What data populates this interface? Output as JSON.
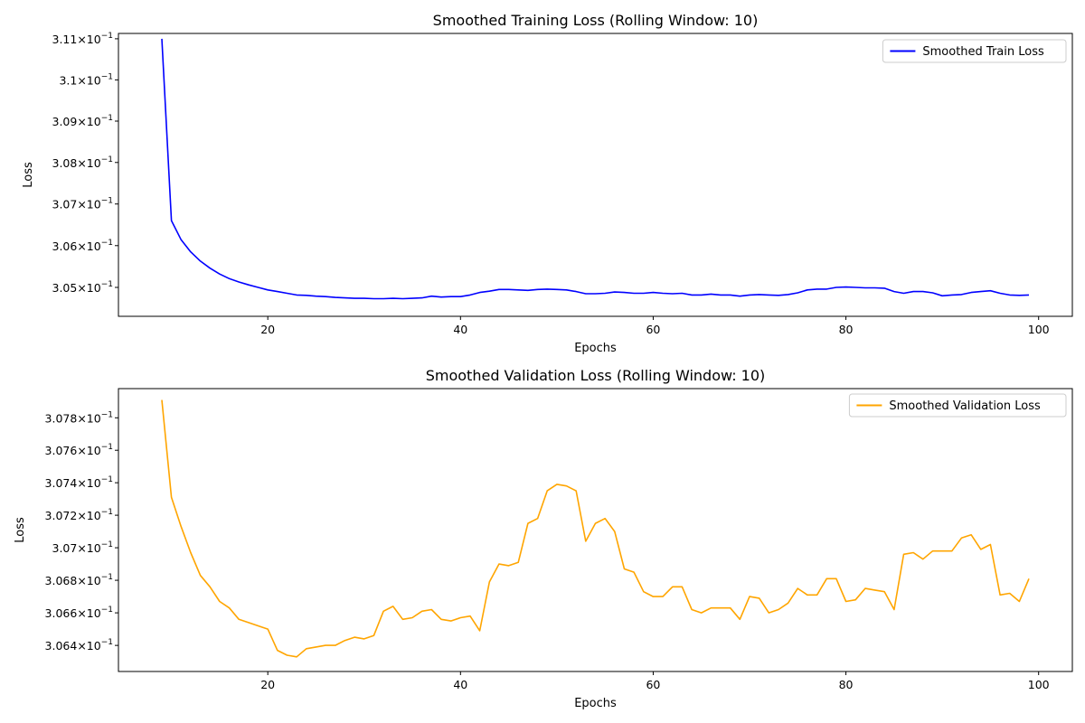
{
  "chart_data": [
    {
      "type": "line",
      "title": "Smoothed Training Loss (Rolling Window: 10)",
      "xlabel": "Epochs",
      "ylabel": "Loss",
      "xlim": [
        4.5,
        103.5
      ],
      "ylim": [
        0.30431,
        0.31113
      ],
      "y_scale": "log",
      "x_ticks": [
        20,
        40,
        60,
        80,
        100
      ],
      "x_tick_labels": [
        "20",
        "40",
        "60",
        "80",
        "100"
      ],
      "y_ticks": [
        0.305,
        0.306,
        0.307,
        0.308,
        0.309,
        0.31,
        0.311
      ],
      "y_tick_labels": [
        {
          "mant": "3.05",
          "exp": "−1"
        },
        {
          "mant": "3.06",
          "exp": "−1"
        },
        {
          "mant": "3.07",
          "exp": "−1"
        },
        {
          "mant": "3.08",
          "exp": "−1"
        },
        {
          "mant": "3.09",
          "exp": "−1"
        },
        {
          "mant": "3.1",
          "exp": "−1"
        },
        {
          "mant": "3.11",
          "exp": "−1"
        }
      ],
      "grid": false,
      "legend_position": "top-right",
      "series": [
        {
          "name": "Smoothed Train Loss",
          "color": "#0000ff",
          "x": [
            9,
            10,
            11,
            12,
            13,
            14,
            15,
            16,
            17,
            18,
            19,
            20,
            21,
            22,
            23,
            24,
            25,
            26,
            27,
            28,
            29,
            30,
            31,
            32,
            33,
            34,
            35,
            36,
            37,
            38,
            39,
            40,
            41,
            42,
            43,
            44,
            45,
            46,
            47,
            48,
            49,
            50,
            51,
            52,
            53,
            54,
            55,
            56,
            57,
            58,
            59,
            60,
            61,
            62,
            63,
            64,
            65,
            66,
            67,
            68,
            69,
            70,
            71,
            72,
            73,
            74,
            75,
            76,
            77,
            78,
            79,
            80,
            81,
            82,
            83,
            84,
            85,
            86,
            87,
            88,
            89,
            90,
            91,
            92,
            93,
            94,
            95,
            96,
            97,
            98,
            99
          ],
          "values": [
            0.311,
            0.3066,
            0.30614,
            0.30585,
            0.30563,
            0.30546,
            0.30532,
            0.30521,
            0.30513,
            0.30506,
            0.305,
            0.30494,
            0.3049,
            0.30486,
            0.30482,
            0.30481,
            0.30479,
            0.30478,
            0.30476,
            0.30475,
            0.30474,
            0.30474,
            0.30473,
            0.30473,
            0.30474,
            0.30473,
            0.30474,
            0.30475,
            0.30479,
            0.30477,
            0.30478,
            0.30478,
            0.30482,
            0.30488,
            0.30491,
            0.30495,
            0.30495,
            0.30494,
            0.30493,
            0.30495,
            0.30496,
            0.30495,
            0.30494,
            0.3049,
            0.30485,
            0.30485,
            0.30486,
            0.30489,
            0.30488,
            0.30486,
            0.30486,
            0.30488,
            0.30486,
            0.30485,
            0.30486,
            0.30482,
            0.30482,
            0.30484,
            0.30482,
            0.30482,
            0.30479,
            0.30482,
            0.30483,
            0.30482,
            0.30481,
            0.30483,
            0.30487,
            0.30494,
            0.30496,
            0.30496,
            0.305,
            0.30501,
            0.305,
            0.30499,
            0.30499,
            0.30498,
            0.3049,
            0.30486,
            0.3049,
            0.3049,
            0.30487,
            0.3048,
            0.30482,
            0.30483,
            0.30488,
            0.3049,
            0.30492,
            0.30486,
            0.30482,
            0.30481,
            0.30482
          ]
        }
      ]
    },
    {
      "type": "line",
      "title": "Smoothed Validation Loss (Rolling Window: 10)",
      "xlabel": "Epochs",
      "ylabel": "Loss",
      "xlim": [
        4.5,
        103.5
      ],
      "ylim": [
        0.30624,
        0.30798
      ],
      "y_scale": "log",
      "x_ticks": [
        20,
        40,
        60,
        80,
        100
      ],
      "x_tick_labels": [
        "20",
        "40",
        "60",
        "80",
        "100"
      ],
      "y_ticks": [
        0.3064,
        0.3066,
        0.3068,
        0.307,
        0.3072,
        0.3074,
        0.3076,
        0.3078
      ],
      "y_tick_labels": [
        {
          "mant": "3.064",
          "exp": "−1"
        },
        {
          "mant": "3.066",
          "exp": "−1"
        },
        {
          "mant": "3.068",
          "exp": "−1"
        },
        {
          "mant": "3.07",
          "exp": "−1"
        },
        {
          "mant": "3.072",
          "exp": "−1"
        },
        {
          "mant": "3.074",
          "exp": "−1"
        },
        {
          "mant": "3.076",
          "exp": "−1"
        },
        {
          "mant": "3.078",
          "exp": "−1"
        }
      ],
      "grid": false,
      "legend_position": "top-right",
      "series": [
        {
          "name": "Smoothed Validation Loss",
          "color": "#ffa500",
          "x": [
            9,
            10,
            11,
            12,
            13,
            14,
            15,
            16,
            17,
            18,
            19,
            20,
            21,
            22,
            23,
            24,
            25,
            26,
            27,
            28,
            29,
            30,
            31,
            32,
            33,
            34,
            35,
            36,
            37,
            38,
            39,
            40,
            41,
            42,
            43,
            44,
            45,
            46,
            47,
            48,
            49,
            50,
            51,
            52,
            53,
            54,
            55,
            56,
            57,
            58,
            59,
            60,
            61,
            62,
            63,
            64,
            65,
            66,
            67,
            68,
            69,
            70,
            71,
            72,
            73,
            74,
            75,
            76,
            77,
            78,
            79,
            80,
            81,
            82,
            83,
            84,
            85,
            86,
            87,
            88,
            89,
            90,
            91,
            92,
            93,
            94,
            95,
            96,
            97,
            98,
            99
          ],
          "values": [
            0.30791,
            0.30731,
            0.30713,
            0.30697,
            0.30683,
            0.30676,
            0.30667,
            0.30663,
            0.30656,
            0.30654,
            0.30652,
            0.3065,
            0.30637,
            0.30634,
            0.30633,
            0.30638,
            0.30639,
            0.3064,
            0.3064,
            0.30643,
            0.30645,
            0.30644,
            0.30646,
            0.30661,
            0.30664,
            0.30656,
            0.30657,
            0.30661,
            0.30662,
            0.30656,
            0.30655,
            0.30657,
            0.30658,
            0.30649,
            0.30679,
            0.3069,
            0.30689,
            0.30691,
            0.30715,
            0.30718,
            0.30735,
            0.30739,
            0.30738,
            0.30735,
            0.30704,
            0.30715,
            0.30718,
            0.3071,
            0.30687,
            0.30685,
            0.30673,
            0.3067,
            0.3067,
            0.30676,
            0.30676,
            0.30662,
            0.3066,
            0.30663,
            0.30663,
            0.30663,
            0.30656,
            0.3067,
            0.30669,
            0.3066,
            0.30662,
            0.30666,
            0.30675,
            0.30671,
            0.30671,
            0.30681,
            0.30681,
            0.30667,
            0.30668,
            0.30675,
            0.30674,
            0.30673,
            0.30662,
            0.30696,
            0.30697,
            0.30693,
            0.30698,
            0.30698,
            0.30698,
            0.30706,
            0.30708,
            0.30699,
            0.30702,
            0.30671,
            0.30672,
            0.30667,
            0.30681
          ]
        }
      ]
    }
  ]
}
